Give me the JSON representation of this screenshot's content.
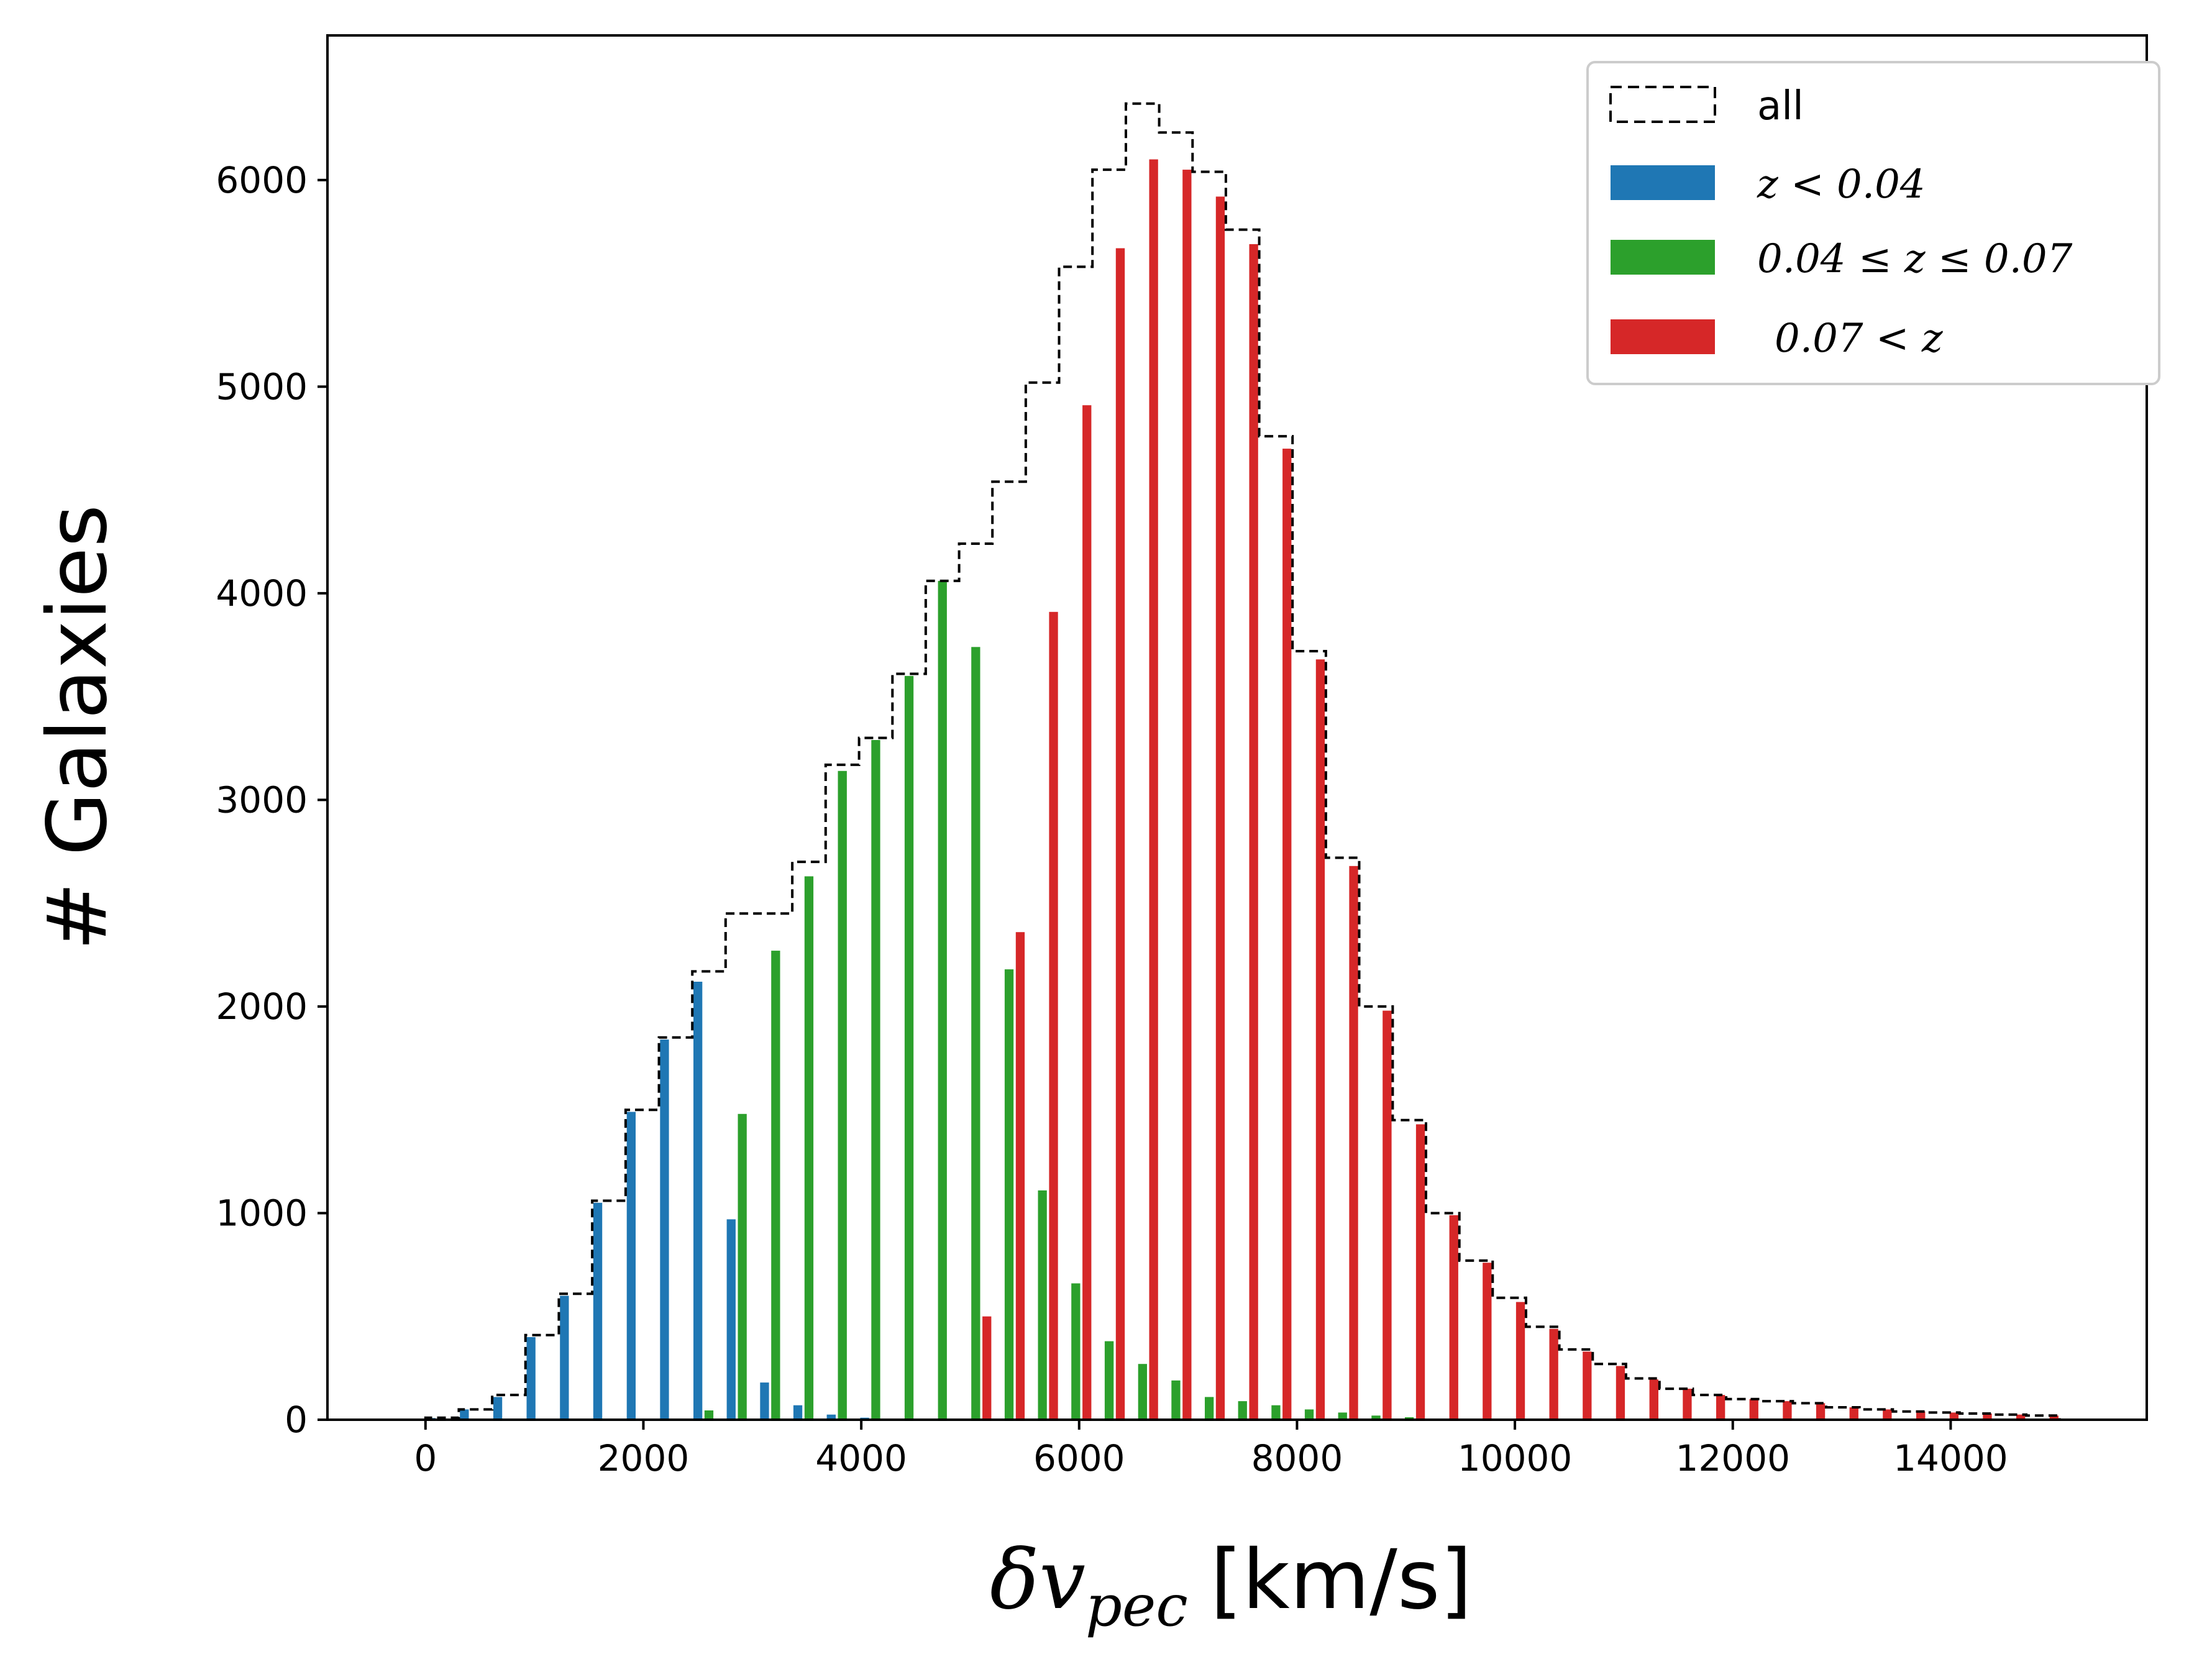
{
  "colors": {
    "all": "#000000",
    "low": "#1f77b4",
    "mid": "#2ca02c",
    "high": "#d62728",
    "frame": "#000000",
    "legend_border": "#cccccc"
  },
  "chart_data": {
    "type": "bar",
    "title": "",
    "xlabel_symbol": "δv",
    "xlabel_subscript": "pec",
    "xlabel_unit": "[km/s]",
    "ylabel": "# Galaxies",
    "xlim": [
      -900,
      15800
    ],
    "ylim": [
      0,
      6700
    ],
    "xticks": [
      0,
      2000,
      4000,
      6000,
      8000,
      10000,
      12000,
      14000
    ],
    "xtick_labels": [
      "0",
      "2000",
      "4000",
      "6000",
      "8000",
      "10000",
      "12000",
      "14000"
    ],
    "yticks": [
      0,
      1000,
      2000,
      3000,
      4000,
      5000,
      6000
    ],
    "ytick_labels": [
      "0",
      "1000",
      "2000",
      "3000",
      "4000",
      "5000",
      "6000"
    ],
    "grid": false,
    "legend_position": "top-right",
    "bin_edges": [
      0,
      306,
      612,
      918,
      1224,
      1530,
      1837,
      2143,
      2449,
      2755,
      3061,
      3367,
      3673,
      3980,
      4286,
      4592,
      4898,
      5204,
      5510,
      5816,
      6122,
      6429,
      6735,
      7041,
      7347,
      7653,
      7959,
      8265,
      8571,
      8878,
      9184,
      9490,
      9796,
      10102,
      10408,
      10714,
      11020,
      11327,
      11633,
      11939,
      12245,
      12551,
      12857,
      13163,
      13469,
      13776,
      14082,
      14388,
      14694,
      15000
    ],
    "series": [
      {
        "name": "all",
        "legend_label": "all",
        "style": "step-dashed",
        "values": [
          10,
          50,
          120,
          410,
          610,
          1060,
          1500,
          1850,
          2170,
          2450,
          2450,
          2700,
          3170,
          3300,
          3610,
          4060,
          4240,
          4540,
          5020,
          5580,
          6050,
          6370,
          6230,
          6040,
          5760,
          4760,
          3720,
          2720,
          2000,
          1450,
          1000,
          770,
          590,
          450,
          340,
          270,
          200,
          150,
          120,
          100,
          90,
          80,
          60,
          50,
          40,
          35,
          30,
          25,
          20
        ]
      },
      {
        "name": "z<0.04",
        "legend_math": "z < 0.04",
        "values": [
          8,
          50,
          110,
          400,
          600,
          1050,
          1490,
          1840,
          2120,
          970,
          180,
          70,
          25,
          10,
          5,
          0,
          0,
          0,
          0,
          0,
          0,
          0,
          0,
          0,
          0,
          0,
          0,
          0,
          0,
          0,
          0,
          0,
          0,
          0,
          0,
          0,
          0,
          0,
          0,
          0,
          0,
          0,
          0,
          0,
          0,
          0,
          0,
          0,
          0
        ]
      },
      {
        "name": "0.04<=z<=0.07",
        "legend_math": "0.04 ≤ z ≤ 0.07",
        "values": [
          0,
          0,
          0,
          0,
          0,
          0,
          0,
          0,
          45,
          1480,
          2270,
          2630,
          3140,
          3290,
          3600,
          4060,
          3740,
          2180,
          1110,
          660,
          380,
          270,
          190,
          110,
          90,
          70,
          50,
          35,
          20,
          12,
          5,
          3,
          2,
          0,
          0,
          0,
          0,
          0,
          0,
          0,
          0,
          0,
          0,
          0,
          0,
          0,
          0,
          0,
          0
        ]
      },
      {
        "name": "0.07<z",
        "legend_math": "0.07 < z",
        "values": [
          0,
          0,
          0,
          0,
          0,
          0,
          0,
          0,
          0,
          0,
          0,
          0,
          0,
          0,
          0,
          0,
          500,
          2360,
          3910,
          4910,
          5670,
          6100,
          6050,
          5920,
          5690,
          4700,
          3680,
          2680,
          1980,
          1430,
          990,
          760,
          570,
          440,
          330,
          260,
          195,
          150,
          120,
          100,
          90,
          80,
          60,
          50,
          40,
          35,
          30,
          25,
          20
        ]
      }
    ]
  }
}
